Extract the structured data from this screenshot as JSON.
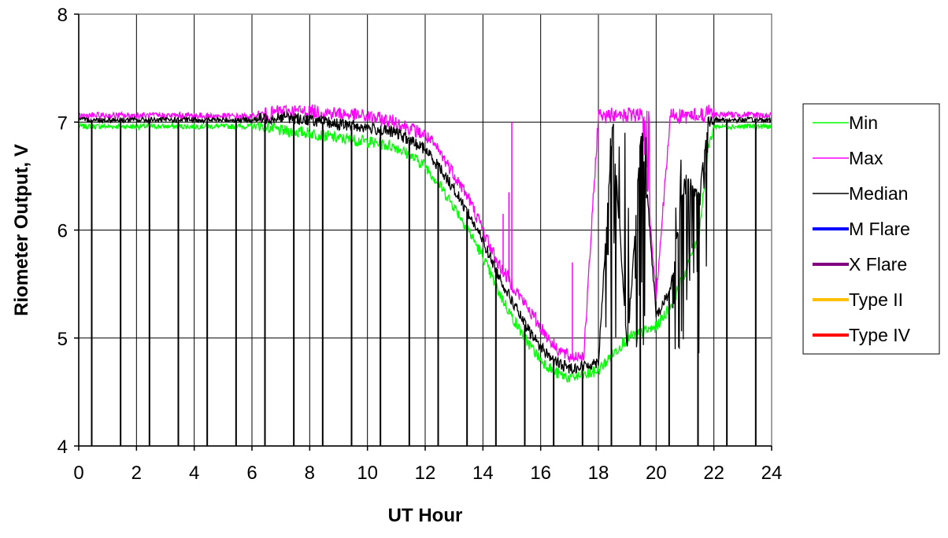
{
  "chart_data": {
    "type": "line",
    "title": "",
    "xlabel": "UT Hour",
    "ylabel": "Riometer Output, V",
    "xlim": [
      0,
      24
    ],
    "ylim": [
      4,
      8
    ],
    "x_ticks": [
      0,
      2,
      4,
      6,
      8,
      10,
      12,
      14,
      16,
      18,
      20,
      22,
      24
    ],
    "y_ticks": [
      4,
      5,
      6,
      7,
      8
    ],
    "grid": true,
    "legend_position": "right",
    "calibration_dropouts_ut": [
      0.45,
      1.45,
      2.45,
      3.45,
      4.45,
      5.45,
      6.45,
      7.45,
      8.45,
      9.45,
      10.45,
      11.45,
      12.45,
      13.45,
      14.45,
      15.45,
      16.45,
      17.45,
      18.45,
      19.45,
      20.45,
      21.45,
      22.45,
      23.45
    ],
    "dropout_min_value": 4.0,
    "series": [
      {
        "name": "Min",
        "color": "#00ff00",
        "x": [
          0,
          2,
          4,
          6,
          6.3,
          7,
          8,
          9,
          10,
          11,
          12,
          12.5,
          13,
          13.5,
          14,
          14.5,
          15,
          15.5,
          16,
          16.5,
          17,
          17.5,
          18,
          18.5,
          19,
          19.5,
          20,
          20.5,
          21,
          21.5,
          21.8,
          22,
          23,
          24
        ],
        "y": [
          6.96,
          6.96,
          6.96,
          6.96,
          6.97,
          6.92,
          6.9,
          6.85,
          6.82,
          6.77,
          6.6,
          6.42,
          6.22,
          6.0,
          5.75,
          5.45,
          5.2,
          4.98,
          4.8,
          4.68,
          4.63,
          4.65,
          4.7,
          4.85,
          5.0,
          5.05,
          5.1,
          5.3,
          5.6,
          6.0,
          6.75,
          6.96,
          6.96,
          6.96
        ]
      },
      {
        "name": "Max",
        "color": "#ff00ff",
        "x": [
          0,
          2,
          4,
          6,
          6.3,
          7,
          8,
          9,
          10,
          11,
          12,
          12.5,
          13,
          13.5,
          14,
          14.5,
          15,
          15.5,
          16,
          16.5,
          17,
          17.5,
          18,
          18.5,
          19,
          19.5,
          20,
          20.5,
          21,
          21.5,
          21.8,
          22,
          23,
          24
        ],
        "y": [
          7.06,
          7.06,
          7.06,
          7.05,
          7.06,
          7.1,
          7.1,
          7.08,
          7.05,
          7.0,
          6.88,
          6.72,
          6.52,
          6.3,
          6.0,
          5.7,
          5.5,
          5.3,
          5.1,
          4.92,
          4.82,
          4.85,
          7.07,
          7.07,
          7.07,
          7.07,
          5.4,
          7.07,
          7.07,
          7.07,
          7.1,
          7.07,
          7.07,
          7.06
        ],
        "spikes": [
          {
            "x": 15.0,
            "y": 7.0
          },
          {
            "x": 14.9,
            "y": 6.35
          },
          {
            "x": 14.7,
            "y": 6.15
          },
          {
            "x": 17.1,
            "y": 5.7
          }
        ]
      },
      {
        "name": "Median",
        "color": "#000000",
        "x": [
          0,
          2,
          4,
          6,
          6.3,
          7,
          8,
          9,
          10,
          11,
          12,
          12.5,
          13,
          13.5,
          14,
          14.5,
          15,
          15.5,
          16,
          16.5,
          17,
          17.5,
          18,
          18.5,
          19,
          19.5,
          20,
          20.5,
          21,
          21.5,
          21.8,
          22,
          23,
          24
        ],
        "y": [
          7.02,
          7.02,
          7.02,
          7.02,
          7.03,
          7.05,
          7.02,
          6.98,
          6.95,
          6.9,
          6.75,
          6.58,
          6.38,
          6.15,
          5.9,
          5.6,
          5.35,
          5.1,
          4.92,
          4.78,
          4.72,
          4.74,
          4.78,
          7.0,
          4.9,
          7.0,
          5.2,
          5.45,
          6.5,
          6.3,
          7.0,
          7.02,
          7.02,
          7.02
        ]
      },
      {
        "name": "M Flare",
        "color": "#0000ff",
        "x": [],
        "y": []
      },
      {
        "name": "X Flare",
        "color": "#800080",
        "x": [],
        "y": []
      },
      {
        "name": "Type II",
        "color": "#ffc000",
        "x": [],
        "y": []
      },
      {
        "name": "Type IV",
        "color": "#ff0000",
        "x": [],
        "y": []
      }
    ]
  },
  "legend": {
    "items": [
      {
        "label": "Min",
        "color": "#00ff00",
        "thick": false
      },
      {
        "label": "Max",
        "color": "#ff00ff",
        "thick": false
      },
      {
        "label": "Median",
        "color": "#000000",
        "thick": false
      },
      {
        "label": "M Flare",
        "color": "#0000ff",
        "thick": true
      },
      {
        "label": "X Flare",
        "color": "#800080",
        "thick": true
      },
      {
        "label": "Type II",
        "color": "#ffc000",
        "thick": true
      },
      {
        "label": "Type IV",
        "color": "#ff0000",
        "thick": true
      }
    ]
  }
}
